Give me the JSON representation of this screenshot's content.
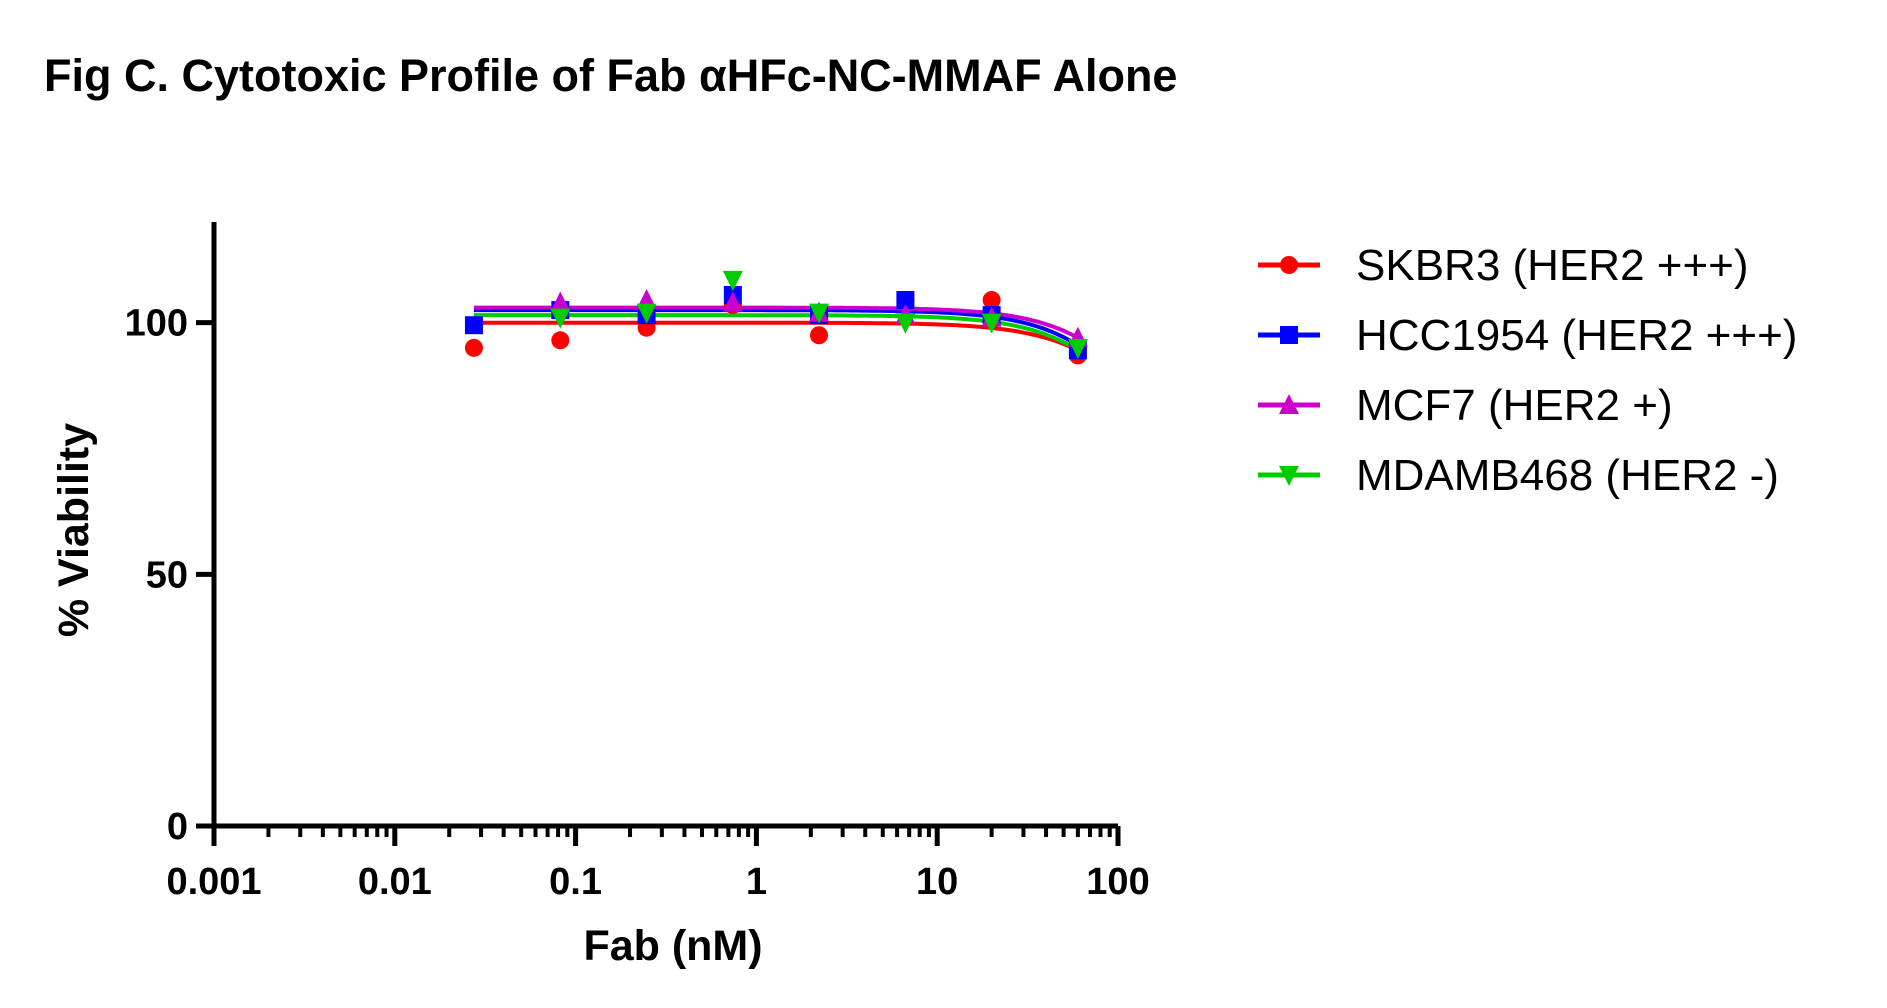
{
  "chart_data": {
    "type": "scatter",
    "title": "Fig C. Cytotoxic Profile of Fab αHFc-NC-MMAF Alone",
    "xlabel": "Fab (nM)",
    "ylabel": "% Viability",
    "x_scale": "log",
    "xlim": [
      0.001,
      100
    ],
    "ylim": [
      0,
      120
    ],
    "x_ticks": [
      {
        "value": 0.001,
        "label": "0.001"
      },
      {
        "value": 0.01,
        "label": "0.01"
      },
      {
        "value": 0.1,
        "label": "0.1"
      },
      {
        "value": 1,
        "label": "1"
      },
      {
        "value": 10,
        "label": "10"
      },
      {
        "value": 100,
        "label": "100"
      }
    ],
    "y_ticks": [
      {
        "value": 0,
        "label": "0"
      },
      {
        "value": 50,
        "label": "50"
      },
      {
        "value": 100,
        "label": "100"
      }
    ],
    "grid": false,
    "legend_position": "right",
    "series": [
      {
        "name": "SKBR3 (HER2 +++)",
        "color": "#ff0000",
        "marker": "circle",
        "x": [
          0.0274,
          0.0823,
          0.247,
          0.741,
          2.22,
          6.67,
          20,
          60
        ],
        "y": [
          95,
          96.5,
          99,
          103.5,
          97.5,
          104.5,
          104.5,
          93.5
        ],
        "fit_plateau": 100,
        "fit_end": 94.5
      },
      {
        "name": "HCC1954 (HER2 +++)",
        "color": "#0000ff",
        "marker": "square",
        "x": [
          0.0274,
          0.0823,
          0.247,
          0.741,
          2.22,
          6.67,
          20,
          60
        ],
        "y": [
          99.5,
          102.5,
          101.5,
          105.5,
          101.5,
          104.5,
          101.5,
          94.5
        ],
        "fit_plateau": 102.5,
        "fit_end": 95.5
      },
      {
        "name": "MCF7 (HER2 +)",
        "color": "#cc00cc",
        "marker": "triangle-up",
        "x": [
          0.0823,
          0.247,
          0.741,
          2.22,
          6.67,
          20,
          60
        ],
        "y": [
          104,
          104.5,
          104,
          102,
          101.5,
          101,
          97
        ],
        "fit_plateau": 103,
        "fit_end": 97
      },
      {
        "name": "MDAMB468 (HER2 -)",
        "color": "#00cc00",
        "marker": "triangle-down",
        "x": [
          0.0823,
          0.247,
          0.741,
          2.22,
          6.67,
          20,
          60
        ],
        "y": [
          101,
          102,
          108.5,
          102,
          100,
          100,
          95
        ],
        "fit_plateau": 101.5,
        "fit_end": 94.5
      }
    ]
  }
}
